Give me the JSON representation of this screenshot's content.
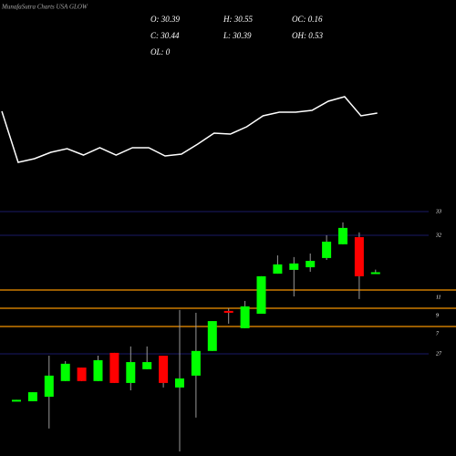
{
  "chart_data": [
    {
      "type": "line",
      "title": "MunafaSutra Charts USA GLOW",
      "color": "#ffffff",
      "x": [
        0,
        1,
        2,
        3,
        4,
        5,
        6,
        7,
        8,
        9,
        10,
        11,
        12,
        13,
        14,
        15,
        16,
        17,
        18,
        19,
        20,
        21,
        22,
        23
      ],
      "values": [
        78,
        22,
        26,
        33,
        37,
        30,
        38,
        30,
        38,
        38,
        29,
        31,
        42,
        54,
        53,
        61,
        73,
        77,
        77,
        79,
        89,
        94,
        73,
        76
      ],
      "ylim": [
        0,
        100
      ]
    },
    {
      "type": "candlestick",
      "header": [
        [
          "O: 30.39",
          "H: 30.55",
          "OC: 0.16"
        ],
        [
          "C: 30.44",
          "L: 30.39",
          "OH: 0.53"
        ],
        [
          "OL: 0"
        ]
      ],
      "open": [
        25.0,
        25.0,
        25.19,
        25.85,
        26.42,
        25.85,
        27.04,
        25.77,
        26.35,
        26.92,
        25.58,
        26.08,
        27.12,
        28.81,
        28.08,
        28.69,
        30.38,
        30.54,
        30.65,
        31.04,
        31.62,
        31.92,
        30.39
      ],
      "high": [
        25.06,
        25.38,
        26.92,
        26.69,
        26.42,
        26.92,
        27.04,
        27.31,
        27.31,
        26.92,
        28.85,
        28.73,
        28.38,
        28.92,
        29.23,
        30.27,
        31.15,
        31.08,
        31.23,
        32.0,
        32.54,
        32.12,
        30.55
      ],
      "low": [
        25.0,
        25.0,
        23.85,
        25.85,
        25.85,
        25.85,
        25.77,
        25.46,
        26.35,
        25.58,
        22.88,
        24.31,
        27.12,
        28.27,
        28.08,
        28.69,
        30.38,
        29.42,
        30.46,
        30.96,
        31.62,
        29.31,
        30.39
      ],
      "close": [
        25.06,
        25.38,
        26.08,
        26.58,
        25.85,
        26.73,
        25.77,
        26.65,
        26.65,
        25.77,
        25.96,
        27.12,
        28.38,
        28.73,
        29.0,
        30.27,
        30.77,
        30.81,
        30.92,
        31.73,
        32.31,
        30.27,
        30.44
      ],
      "up_color": "#00ff00",
      "down_color": "#ff0000",
      "ylim": [
        22.69,
        33.46
      ],
      "yticks": [
        33,
        32,
        27
      ],
      "grid_color": "#1a1a66",
      "levels": [
        {
          "value": 29.69,
          "label": "11"
        },
        {
          "value": 28.92,
          "label": "9"
        },
        {
          "value": 28.15,
          "label": "7"
        }
      ],
      "level_color": "#cc7a00"
    }
  ]
}
